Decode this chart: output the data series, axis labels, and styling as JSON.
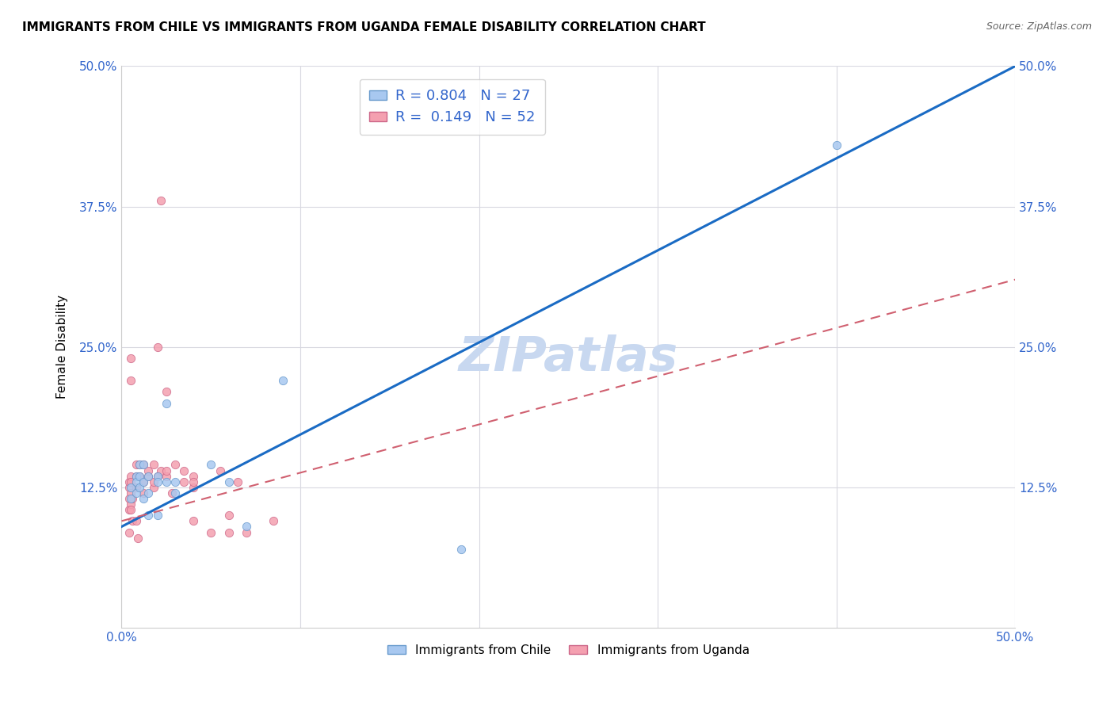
{
  "title": "IMMIGRANTS FROM CHILE VS IMMIGRANTS FROM UGANDA FEMALE DISABILITY CORRELATION CHART",
  "source": "Source: ZipAtlas.com",
  "ylabel": "Female Disability",
  "xlim": [
    0.0,
    0.5
  ],
  "ylim": [
    0.0,
    0.5
  ],
  "chile_color": "#a8c8f0",
  "chile_edge_color": "#6699cc",
  "uganda_color": "#f4a0b0",
  "uganda_edge_color": "#cc6688",
  "chile_line_color": "#1a6bc4",
  "uganda_line_color": "#d06070",
  "watermark_color": "#c8d8f0",
  "chile_R": 0.804,
  "chile_N": 27,
  "uganda_R": 0.149,
  "uganda_N": 52,
  "legend_R_color": "#3366cc",
  "background_color": "#ffffff",
  "grid_color": "#d8d8e0",
  "chile_line_x0": 0.0,
  "chile_line_y0": 0.09,
  "chile_line_x1": 0.5,
  "chile_line_y1": 0.5,
  "uganda_line_x0": 0.0,
  "uganda_line_y0": 0.095,
  "uganda_line_x1": 0.5,
  "uganda_line_y1": 0.31,
  "chile_scatter_x": [
    0.005,
    0.005,
    0.008,
    0.008,
    0.008,
    0.01,
    0.01,
    0.01,
    0.012,
    0.012,
    0.012,
    0.015,
    0.015,
    0.015,
    0.02,
    0.02,
    0.02,
    0.025,
    0.025,
    0.03,
    0.03,
    0.05,
    0.06,
    0.07,
    0.09,
    0.19,
    0.4
  ],
  "chile_scatter_y": [
    0.115,
    0.125,
    0.135,
    0.13,
    0.12,
    0.135,
    0.145,
    0.125,
    0.13,
    0.145,
    0.115,
    0.135,
    0.12,
    0.1,
    0.135,
    0.1,
    0.13,
    0.13,
    0.2,
    0.12,
    0.13,
    0.145,
    0.13,
    0.09,
    0.22,
    0.07,
    0.43
  ],
  "uganda_scatter_x": [
    0.004,
    0.004,
    0.004,
    0.004,
    0.004,
    0.005,
    0.005,
    0.005,
    0.005,
    0.005,
    0.005,
    0.005,
    0.006,
    0.006,
    0.008,
    0.008,
    0.008,
    0.008,
    0.009,
    0.009,
    0.01,
    0.01,
    0.012,
    0.012,
    0.012,
    0.015,
    0.015,
    0.018,
    0.018,
    0.018,
    0.02,
    0.02,
    0.022,
    0.022,
    0.025,
    0.025,
    0.025,
    0.028,
    0.03,
    0.035,
    0.035,
    0.04,
    0.04,
    0.04,
    0.04,
    0.05,
    0.055,
    0.06,
    0.06,
    0.065,
    0.07,
    0.085
  ],
  "uganda_scatter_y": [
    0.115,
    0.125,
    0.13,
    0.105,
    0.085,
    0.135,
    0.12,
    0.11,
    0.13,
    0.105,
    0.22,
    0.24,
    0.115,
    0.095,
    0.135,
    0.125,
    0.095,
    0.145,
    0.135,
    0.08,
    0.135,
    0.145,
    0.12,
    0.13,
    0.145,
    0.135,
    0.14,
    0.125,
    0.13,
    0.145,
    0.135,
    0.25,
    0.14,
    0.38,
    0.135,
    0.14,
    0.21,
    0.12,
    0.145,
    0.13,
    0.14,
    0.135,
    0.125,
    0.095,
    0.13,
    0.085,
    0.14,
    0.085,
    0.1,
    0.13,
    0.085,
    0.095
  ]
}
